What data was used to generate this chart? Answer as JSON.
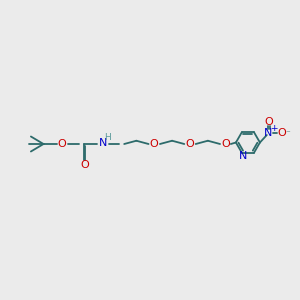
{
  "background_color": "#ebebeb",
  "bond_color": "#2d6b6b",
  "atom_colors": {
    "O": "#cc0000",
    "N": "#0000cc",
    "H": "#5a9a9a",
    "C": "#2d6b6b"
  },
  "figsize": [
    3.0,
    3.0
  ],
  "dpi": 100,
  "xlim": [
    0,
    10
  ],
  "ylim": [
    0,
    10
  ]
}
